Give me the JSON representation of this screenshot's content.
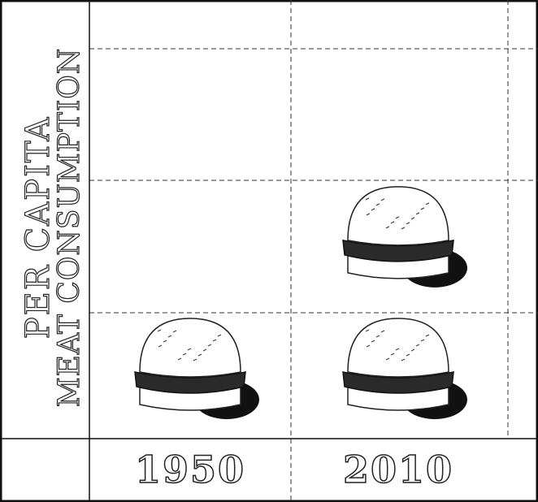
{
  "chart_data": {
    "type": "pictograph",
    "ylabel": [
      "PER CAPITA",
      "MEAT CONSUMPTION"
    ],
    "categories": [
      "1950",
      "2010"
    ],
    "values": [
      1,
      2
    ],
    "ylim": [
      0,
      3.33
    ]
  }
}
